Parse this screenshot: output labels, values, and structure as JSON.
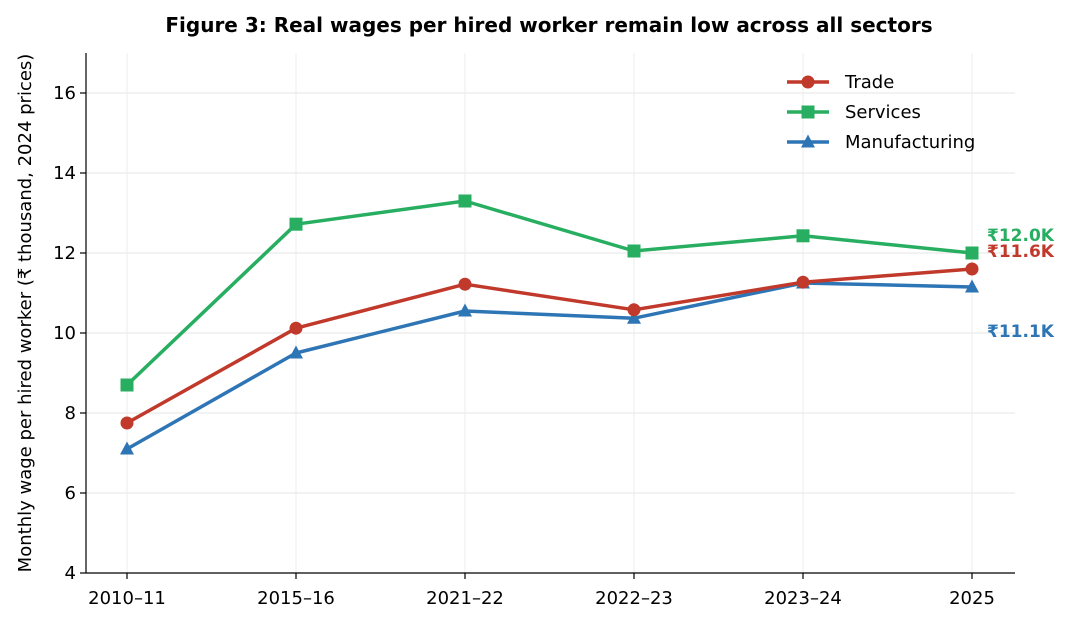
{
  "chart_data": {
    "type": "line",
    "title": "Figure 3: Real wages per hired worker remain low across all sectors",
    "xlabel": "",
    "ylabel": "Monthly wage per hired worker (₹ thousand, 2024 prices)",
    "categories": [
      "2010–11",
      "2015–16",
      "2021–22",
      "2022–23",
      "2023–24",
      "2025"
    ],
    "ylim": [
      4,
      17
    ],
    "yticks": [
      4,
      6,
      8,
      10,
      12,
      14,
      16
    ],
    "grid": true,
    "legend_position": "top-right",
    "series": [
      {
        "name": "Trade",
        "values": [
          7.75,
          10.12,
          11.22,
          10.58,
          11.27,
          11.6
        ],
        "color": "#c0392b",
        "marker": "circle",
        "end_label": "₹11.6K"
      },
      {
        "name": "Services",
        "values": [
          8.7,
          12.72,
          13.3,
          12.05,
          12.43,
          12.0
        ],
        "color": "#27ae60",
        "marker": "square",
        "end_label": "₹12.0K"
      },
      {
        "name": "Manufacturing",
        "values": [
          7.1,
          9.5,
          10.55,
          10.37,
          11.25,
          11.15
        ],
        "color": "#2e75b6",
        "marker": "triangle",
        "end_label": "₹11.1K"
      }
    ]
  }
}
